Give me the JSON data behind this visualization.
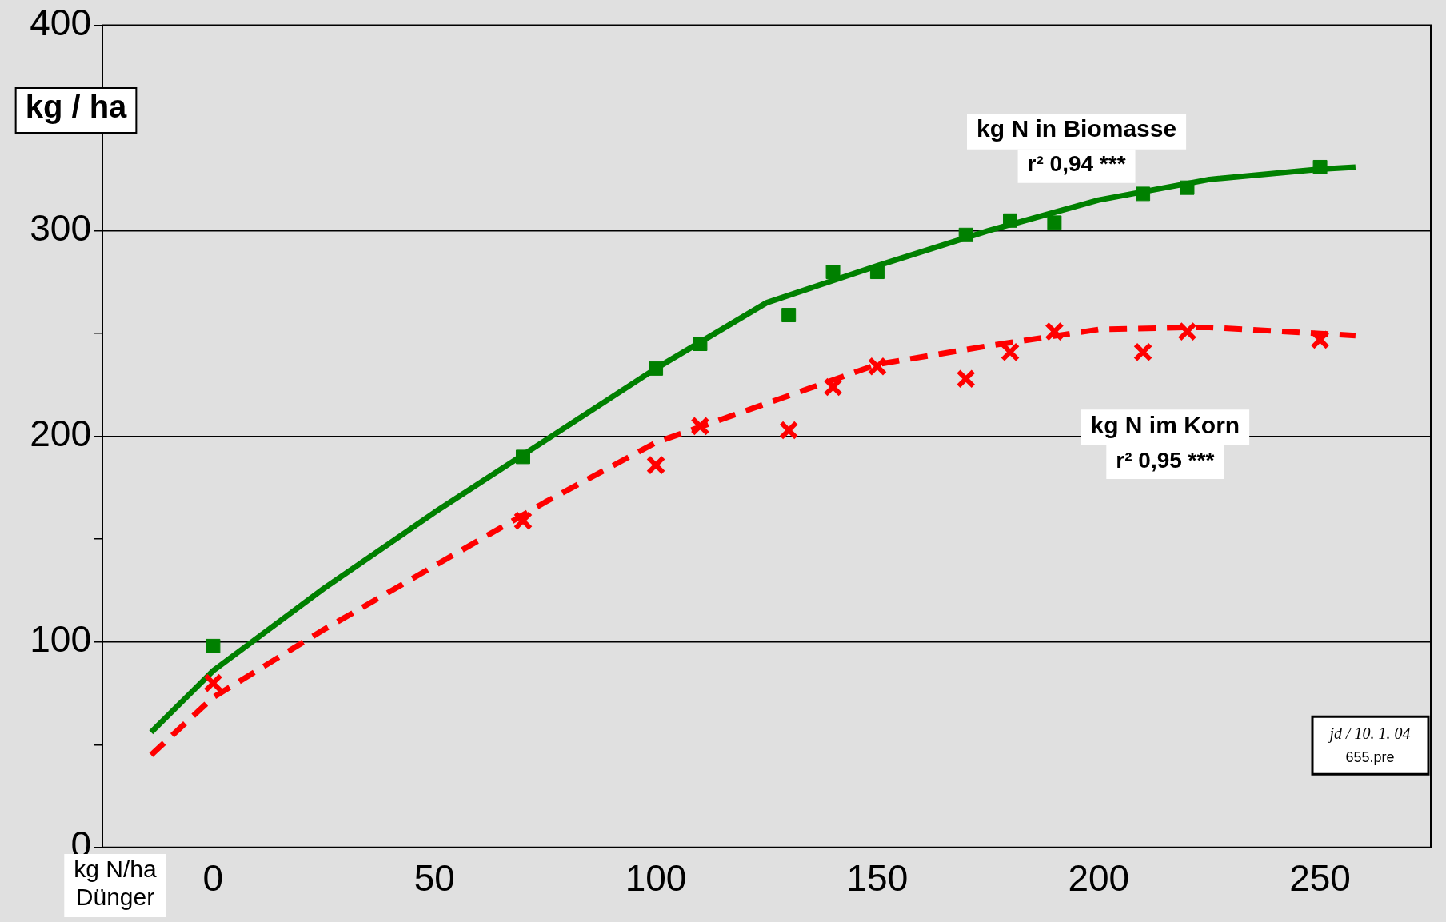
{
  "chart_data": {
    "type": "scatter",
    "xlabel": "kg N/ha\nDünger",
    "ylabel": "kg / ha",
    "xlim": [
      -25,
      275
    ],
    "xticks": [
      0,
      50,
      100,
      150,
      200,
      250
    ],
    "ylim": [
      0,
      400
    ],
    "yticks": [
      0,
      {
        "value": 50,
        "label": null
      },
      100,
      {
        "value": 150,
        "label": null
      },
      200,
      {
        "value": 250,
        "label": null
      },
      300,
      {
        "value": 350,
        "label": null
      },
      400
    ],
    "grid": "y",
    "legend": false,
    "series": [
      {
        "name": "kg N in Biomasse",
        "marker": "square",
        "color": "#008000",
        "x": [
          0,
          70,
          100,
          110,
          130,
          140,
          150,
          170,
          180,
          190,
          210,
          220,
          250
        ],
        "values": [
          98,
          190,
          233,
          245,
          259,
          280,
          280,
          298,
          305,
          304,
          318,
          321,
          331
        ]
      },
      {
        "name": "kg N im Korn",
        "marker": "cross",
        "color": "#ff0000",
        "x": [
          0,
          70,
          100,
          110,
          130,
          140,
          150,
          170,
          180,
          190,
          210,
          220,
          250
        ],
        "values": [
          80,
          159,
          186,
          205,
          203,
          224,
          234,
          228,
          241,
          251,
          241,
          251,
          247
        ]
      },
      {
        "type": "line",
        "marker": "none",
        "line_style": "solid",
        "color": "#008000",
        "x": [
          -14,
          0,
          25,
          50,
          75,
          100,
          125,
          150,
          175,
          200,
          225,
          250,
          258
        ],
        "values": [
          56,
          86,
          126,
          163,
          198,
          233,
          265,
          283,
          300,
          315,
          325,
          330,
          331
        ]
      },
      {
        "type": "line",
        "marker": "none",
        "line_style": "dashed",
        "color": "#ff0000",
        "x": [
          -14,
          0,
          25,
          50,
          75,
          100,
          125,
          150,
          175,
          200,
          220,
          225,
          250,
          258
        ],
        "values": [
          45,
          73,
          106,
          137,
          168,
          197,
          216,
          235,
          244,
          252,
          253,
          253,
          250,
          249
        ]
      }
    ],
    "annotations": [
      "r² 0,94 ***",
      "r² 0,95 ***",
      "jd / 10. 1. 04",
      "655.pre"
    ]
  }
}
